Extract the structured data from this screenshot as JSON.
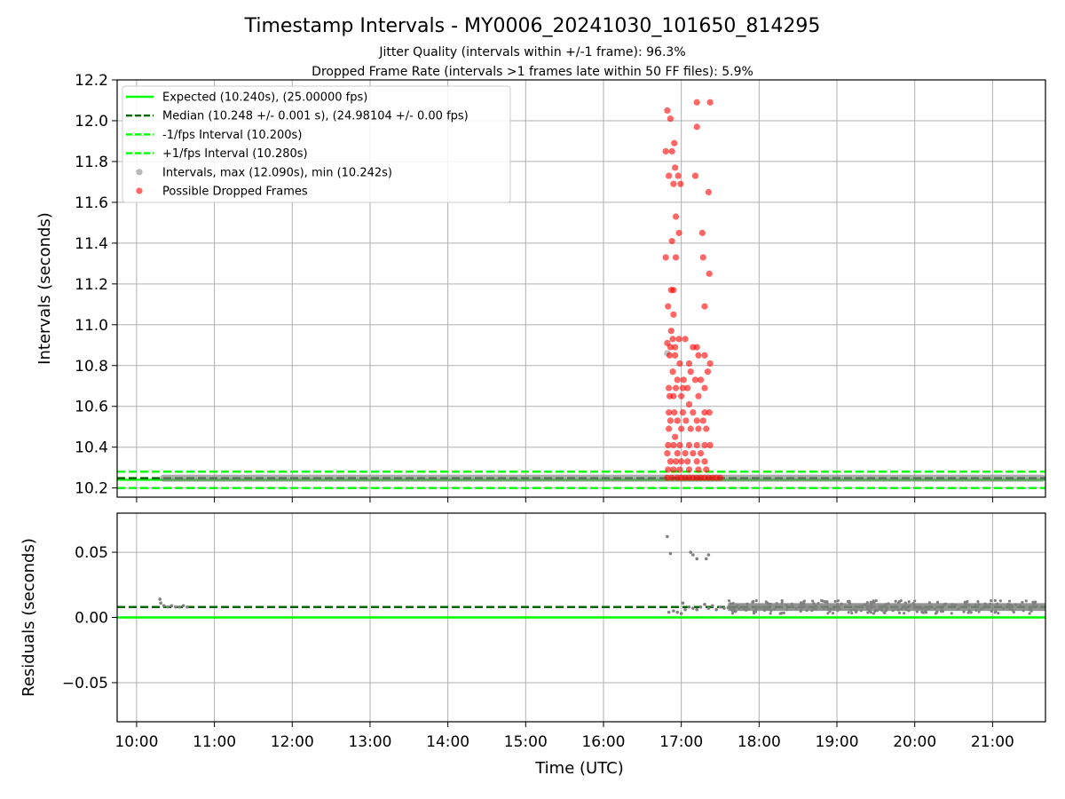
{
  "header": {
    "title": "Timestamp Intervals - MY0006_20241030_101650_814295",
    "subtitle_1": "Jitter Quality (intervals within +/-1 frame): 96.3%",
    "subtitle_2": "Dropped Frame Rate (intervals >1 frames late within 50 FF files): 5.9%"
  },
  "colors": {
    "expected": "#00ff00",
    "median": "#006400",
    "bounds": "#00ff00",
    "points": "#808080",
    "dropped": "#ff0000",
    "grid": "#b0b0b0"
  },
  "chart_data": [
    {
      "type": "scatter",
      "xlabel": "",
      "ylabel": "Intervals (seconds)",
      "xlim": [
        9.75,
        21.68
      ],
      "ylim": [
        10.155,
        12.2
      ],
      "grid": true,
      "legend_position": "top-left",
      "y_ticks": [
        "10.2",
        "10.4",
        "10.6",
        "10.8",
        "11.0",
        "11.2",
        "11.4",
        "11.6",
        "11.8",
        "12.0",
        "12.2"
      ],
      "y_tick_values": [
        10.2,
        10.4,
        10.6,
        10.8,
        11.0,
        11.2,
        11.4,
        11.6,
        11.8,
        12.0,
        12.2
      ],
      "x_tick_values": [
        10,
        11,
        12,
        13,
        14,
        15,
        16,
        17,
        18,
        19,
        20,
        21
      ],
      "reference_lines": [
        {
          "name": "Expected (10.240s), (25.00000 fps)",
          "y": 10.24,
          "style": "solid"
        },
        {
          "name": "Median (10.248 +/- 0.001 s), (24.98104 +/- 0.00 fps)",
          "y": 10.248,
          "style": "dashed"
        },
        {
          "name": "-1/fps Interval (10.200s)",
          "y": 10.2,
          "style": "dashed"
        },
        {
          "name": "+1/fps Interval (10.280s)",
          "y": 10.28,
          "style": "dashed"
        }
      ],
      "series": [
        {
          "name": "Intervals, max (12.090s), min (10.242s)",
          "band": {
            "x_start": 10.3,
            "x_end": 21.68,
            "y": 10.248
          },
          "points": [
            [
              16.82,
              10.86
            ]
          ]
        },
        {
          "name": "Possible Dropped Frames",
          "points": [
            [
              16.82,
              12.05
            ],
            [
              16.86,
              12.01
            ],
            [
              16.8,
              11.85
            ],
            [
              16.91,
              11.89
            ],
            [
              16.88,
              11.85
            ],
            [
              16.92,
              11.77
            ],
            [
              16.84,
              11.73
            ],
            [
              16.9,
              11.69
            ],
            [
              16.96,
              11.73
            ],
            [
              16.99,
              11.69
            ],
            [
              17.2,
              12.09
            ],
            [
              17.37,
              12.09
            ],
            [
              17.2,
              11.97
            ],
            [
              17.18,
              11.73
            ],
            [
              17.35,
              11.65
            ],
            [
              16.93,
              11.53
            ],
            [
              16.97,
              11.45
            ],
            [
              16.88,
              11.41
            ],
            [
              16.8,
              11.33
            ],
            [
              16.93,
              11.33
            ],
            [
              17.27,
              11.45
            ],
            [
              17.28,
              11.33
            ],
            [
              17.36,
              11.25
            ],
            [
              16.87,
              11.17
            ],
            [
              16.9,
              11.17
            ],
            [
              16.83,
              11.09
            ],
            [
              16.9,
              11.05
            ],
            [
              17.3,
              11.09
            ],
            [
              16.87,
              10.97
            ],
            [
              16.89,
              10.93
            ],
            [
              16.82,
              10.91
            ],
            [
              16.86,
              10.89
            ],
            [
              16.92,
              10.89
            ],
            [
              16.97,
              10.93
            ],
            [
              17.05,
              10.93
            ],
            [
              17.15,
              10.89
            ],
            [
              17.2,
              10.89
            ],
            [
              17.3,
              10.85
            ],
            [
              17.37,
              10.81
            ],
            [
              16.85,
              10.85
            ],
            [
              16.92,
              10.85
            ],
            [
              16.98,
              10.81
            ],
            [
              17.1,
              10.81
            ],
            [
              17.22,
              10.85
            ],
            [
              17.34,
              10.77
            ],
            [
              16.89,
              10.77
            ],
            [
              16.95,
              10.73
            ],
            [
              17.03,
              10.73
            ],
            [
              17.12,
              10.77
            ],
            [
              17.25,
              10.73
            ],
            [
              16.84,
              10.69
            ],
            [
              16.93,
              10.69
            ],
            [
              17.02,
              10.69
            ],
            [
              17.08,
              10.69
            ],
            [
              17.18,
              10.73
            ],
            [
              17.3,
              10.69
            ],
            [
              16.85,
              10.65
            ],
            [
              16.9,
              10.65
            ],
            [
              17.0,
              10.65
            ],
            [
              17.1,
              10.61
            ],
            [
              17.22,
              10.65
            ],
            [
              16.84,
              10.57
            ],
            [
              16.91,
              10.57
            ],
            [
              17.02,
              10.57
            ],
            [
              17.15,
              10.57
            ],
            [
              17.3,
              10.57
            ],
            [
              17.36,
              10.57
            ],
            [
              16.86,
              10.53
            ],
            [
              16.95,
              10.53
            ],
            [
              17.06,
              10.53
            ],
            [
              17.2,
              10.53
            ],
            [
              17.28,
              10.53
            ],
            [
              16.84,
              10.49
            ],
            [
              16.92,
              10.45
            ],
            [
              17.0,
              10.49
            ],
            [
              17.12,
              10.49
            ],
            [
              17.22,
              10.49
            ],
            [
              17.32,
              10.49
            ],
            [
              16.83,
              10.41
            ],
            [
              16.9,
              10.41
            ],
            [
              16.98,
              10.41
            ],
            [
              17.1,
              10.41
            ],
            [
              17.2,
              10.41
            ],
            [
              17.3,
              10.41
            ],
            [
              17.37,
              10.41
            ],
            [
              16.82,
              10.37
            ],
            [
              16.95,
              10.37
            ],
            [
              17.05,
              10.37
            ],
            [
              17.15,
              10.37
            ],
            [
              17.25,
              10.37
            ],
            [
              16.86,
              10.33
            ],
            [
              16.93,
              10.33
            ],
            [
              17.0,
              10.33
            ],
            [
              17.08,
              10.33
            ],
            [
              17.2,
              10.33
            ],
            [
              17.3,
              10.33
            ],
            [
              16.83,
              10.29
            ],
            [
              16.9,
              10.29
            ],
            [
              16.98,
              10.29
            ],
            [
              17.1,
              10.29
            ],
            [
              17.22,
              10.29
            ],
            [
              17.32,
              10.29
            ],
            [
              16.82,
              10.25
            ],
            [
              16.88,
              10.25
            ],
            [
              16.95,
              10.25
            ],
            [
              17.0,
              10.25
            ],
            [
              17.05,
              10.25
            ],
            [
              17.1,
              10.25
            ],
            [
              17.15,
              10.25
            ],
            [
              17.2,
              10.25
            ],
            [
              17.25,
              10.25
            ],
            [
              17.3,
              10.25
            ],
            [
              17.35,
              10.25
            ],
            [
              17.4,
              10.25
            ],
            [
              17.45,
              10.25
            ],
            [
              17.5,
              10.25
            ]
          ]
        }
      ]
    },
    {
      "type": "scatter",
      "xlabel": "Time (UTC)",
      "ylabel": "Residuals (seconds)",
      "xlim": [
        9.75,
        21.68
      ],
      "ylim": [
        -0.08,
        0.08
      ],
      "grid": true,
      "y_ticks": [
        "0.05",
        "0.00",
        "−0.05"
      ],
      "y_tick_values": [
        0.05,
        0.0,
        -0.05
      ],
      "x_ticks": [
        "10:00",
        "11:00",
        "12:00",
        "13:00",
        "14:00",
        "15:00",
        "16:00",
        "17:00",
        "18:00",
        "19:00",
        "20:00",
        "21:00"
      ],
      "x_tick_values": [
        10,
        11,
        12,
        13,
        14,
        15,
        16,
        17,
        18,
        19,
        20,
        21
      ],
      "reference_lines": [
        {
          "name": "Expected",
          "y": 0.0,
          "style": "solid"
        },
        {
          "name": "Median",
          "y": 0.008,
          "style": "dashed"
        }
      ],
      "series": [
        {
          "name": "Residuals",
          "band": {
            "x_start": 17.6,
            "x_end": 21.68,
            "y": 0.008,
            "spread": 0.003
          },
          "points": [
            [
              10.3,
              0.014
            ],
            [
              10.31,
              0.011
            ],
            [
              10.35,
              0.009
            ],
            [
              10.4,
              0.008
            ],
            [
              10.45,
              0.009
            ],
            [
              10.5,
              0.008
            ],
            [
              10.55,
              0.008
            ],
            [
              10.6,
              0.009
            ],
            [
              10.65,
              0.008
            ],
            [
              16.82,
              0.062
            ],
            [
              16.86,
              0.049
            ],
            [
              17.12,
              0.05
            ],
            [
              17.15,
              0.048
            ],
            [
              17.2,
              0.045
            ],
            [
              17.32,
              0.045
            ],
            [
              17.35,
              0.048
            ],
            [
              17.0,
              0.003
            ],
            [
              17.02,
              0.011
            ],
            [
              17.05,
              0.006
            ],
            [
              17.1,
              0.008
            ],
            [
              17.15,
              0.007
            ],
            [
              17.2,
              0.006
            ],
            [
              17.25,
              0.008
            ],
            [
              17.3,
              0.01
            ],
            [
              17.35,
              0.007
            ],
            [
              17.4,
              0.009
            ],
            [
              17.45,
              0.006
            ],
            [
              17.5,
              0.008
            ],
            [
              17.55,
              0.007
            ],
            [
              16.84,
              0.004
            ],
            [
              16.9,
              0.005
            ],
            [
              16.95,
              0.004
            ]
          ]
        }
      ]
    }
  ]
}
